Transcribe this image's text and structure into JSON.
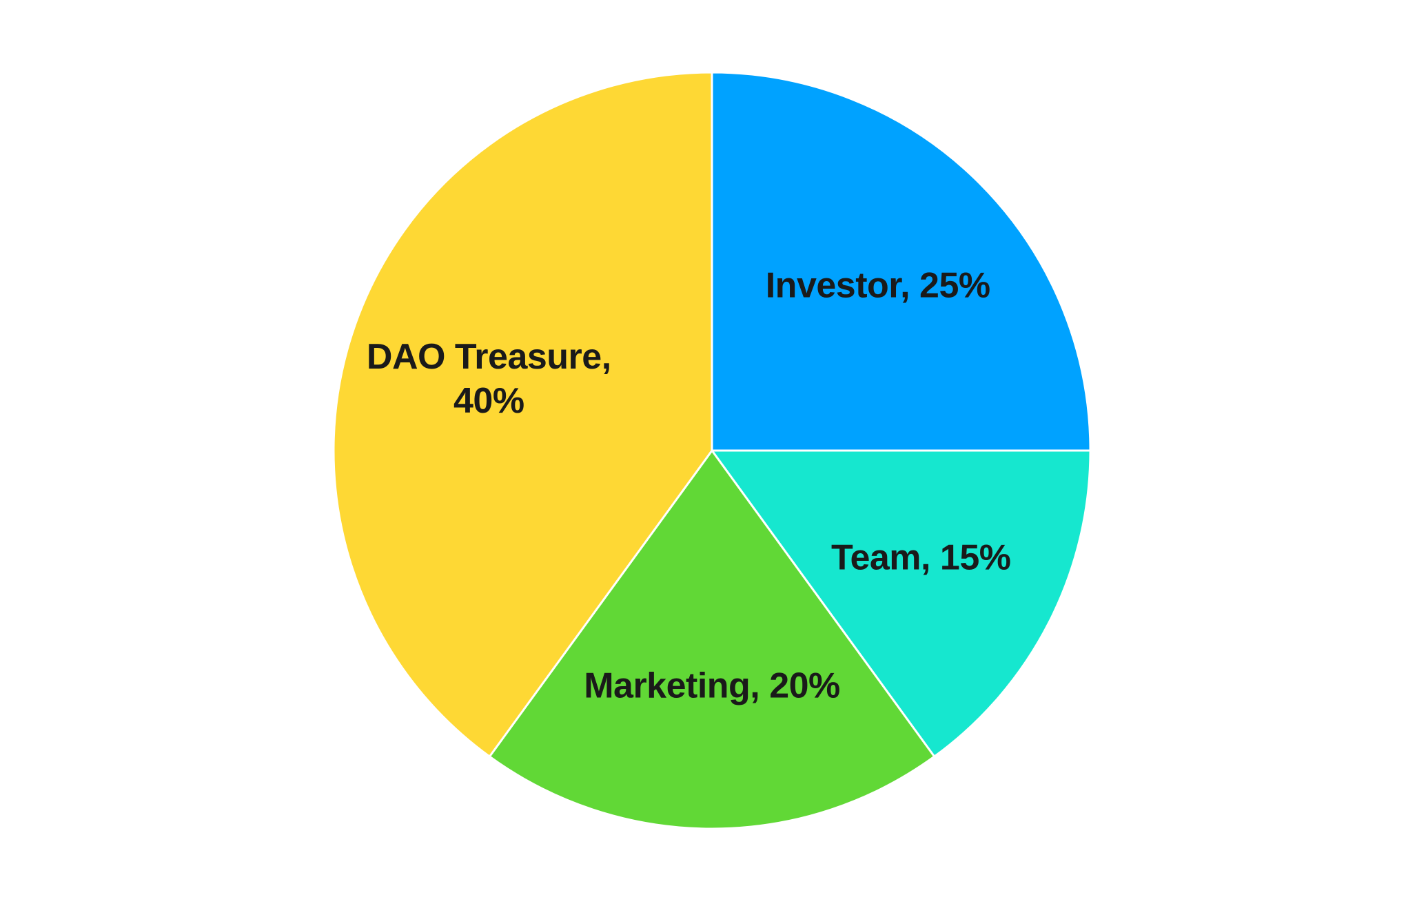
{
  "chart_data": {
    "type": "pie",
    "start_angle_deg": 0,
    "direction": "clockwise",
    "slices": [
      {
        "name": "Investor",
        "value": 25,
        "color": "#00a2ff",
        "label": "Investor, 25%",
        "label_lines": [
          "Investor, 25%"
        ]
      },
      {
        "name": "Team",
        "value": 15,
        "color": "#16e7cf",
        "label": "Team, 15%",
        "label_lines": [
          "Team, 15%"
        ]
      },
      {
        "name": "Marketing",
        "value": 20,
        "color": "#61d836",
        "label": "Marketing, 20%",
        "label_lines": [
          "Marketing, 20%"
        ]
      },
      {
        "name": "DAO Treasure",
        "value": 40,
        "color": "#fed834",
        "label": "DAO Treasure, 40%",
        "label_lines": [
          "DAO Treasure,",
          "40%"
        ]
      }
    ],
    "legend": "none"
  }
}
